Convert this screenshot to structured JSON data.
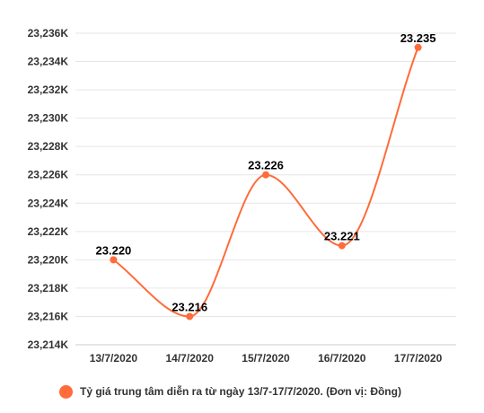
{
  "chart_data": {
    "type": "line",
    "smooth": true,
    "categories": [
      "13/7/2020",
      "14/7/2020",
      "15/7/2020",
      "16/7/2020",
      "17/7/2020"
    ],
    "series": [
      {
        "name": "Tỷ giá trung tâm diễn ra từ ngày 13/7-17/7/2020. (Đơn vị: Đồng)",
        "values": [
          23220,
          23216,
          23226,
          23221,
          23235
        ],
        "data_labels": [
          "23.220",
          "23.216",
          "23.226",
          "23.221",
          "23.235"
        ],
        "color": "#ff6b3a"
      }
    ],
    "y_ticks": [
      "23,214K",
      "23,216K",
      "23,218K",
      "23,220K",
      "23,222K",
      "23,224K",
      "23,226K",
      "23,228K",
      "23,230K",
      "23,232K",
      "23,234K",
      "23,236K"
    ],
    "ylim": [
      23214,
      23236
    ],
    "grid": true,
    "legend": "bottom"
  },
  "colors": {
    "series": "#ff6b3a",
    "grid": "#e6e6e6",
    "axis": "#cccccc"
  }
}
